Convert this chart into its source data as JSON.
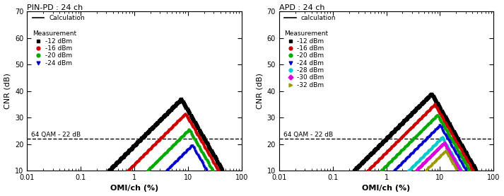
{
  "left_title": "PIN-PD : 24 ch",
  "right_title": "APD : 24 ch",
  "xlabel": "OMI/ch (%)",
  "ylabel": "CNR (dB)",
  "ylim": [
    10,
    70
  ],
  "xlim": [
    0.01,
    100
  ],
  "yticks": [
    10,
    20,
    30,
    40,
    50,
    60,
    70
  ],
  "dashed_line_y": 22,
  "dashed_label": "64 QAM - 22 dB",
  "calc_label_left": "Calculation",
  "calc_label_right": "calculation",
  "meas_label": "Measurement",
  "pin_series": [
    {
      "label": "-12 dBm",
      "color": "#000000",
      "marker": "s",
      "peak_cnr": 37.0,
      "peak_x": 7.5,
      "slope_up": 20,
      "slope_dn": 35
    },
    {
      "label": "-16 dBm",
      "color": "#cc0000",
      "marker": "o",
      "peak_cnr": 31.5,
      "peak_x": 9.0,
      "slope_up": 20,
      "slope_dn": 35
    },
    {
      "label": "-20 dBm",
      "color": "#00aa00",
      "marker": "o",
      "peak_cnr": 25.5,
      "peak_x": 10.5,
      "slope_up": 20,
      "slope_dn": 35
    },
    {
      "label": "-24 dBm",
      "color": "#0000cc",
      "marker": "v",
      "peak_cnr": 19.5,
      "peak_x": 12.0,
      "slope_up": 20,
      "slope_dn": 35
    }
  ],
  "apd_series": [
    {
      "label": "-12 dBm",
      "color": "#000000",
      "marker": "s",
      "peak_cnr": 39.0,
      "peak_x": 7.0,
      "slope_up": 20,
      "slope_dn": 35
    },
    {
      "label": "-16 dBm",
      "color": "#cc0000",
      "marker": "o",
      "peak_cnr": 35.0,
      "peak_x": 8.0,
      "slope_up": 20,
      "slope_dn": 35
    },
    {
      "label": "-20 dBm",
      "color": "#00aa00",
      "marker": "o",
      "peak_cnr": 31.0,
      "peak_x": 9.0,
      "slope_up": 20,
      "slope_dn": 35
    },
    {
      "label": "-24 dBm",
      "color": "#0000cc",
      "marker": "v",
      "peak_cnr": 27.0,
      "peak_x": 10.0,
      "slope_up": 20,
      "slope_dn": 35
    },
    {
      "label": "-28 dBm",
      "color": "#00cccc",
      "marker": "o",
      "peak_cnr": 22.5,
      "peak_x": 11.0,
      "slope_up": 20,
      "slope_dn": 35
    },
    {
      "label": "-30 dBm",
      "color": "#dd00dd",
      "marker": "D",
      "peak_cnr": 20.5,
      "peak_x": 12.0,
      "slope_up": 20,
      "slope_dn": 35
    },
    {
      "label": "-32 dBm",
      "color": "#999900",
      "marker": ">",
      "peak_cnr": 17.5,
      "peak_x": 13.0,
      "slope_up": 20,
      "slope_dn": 35
    }
  ]
}
